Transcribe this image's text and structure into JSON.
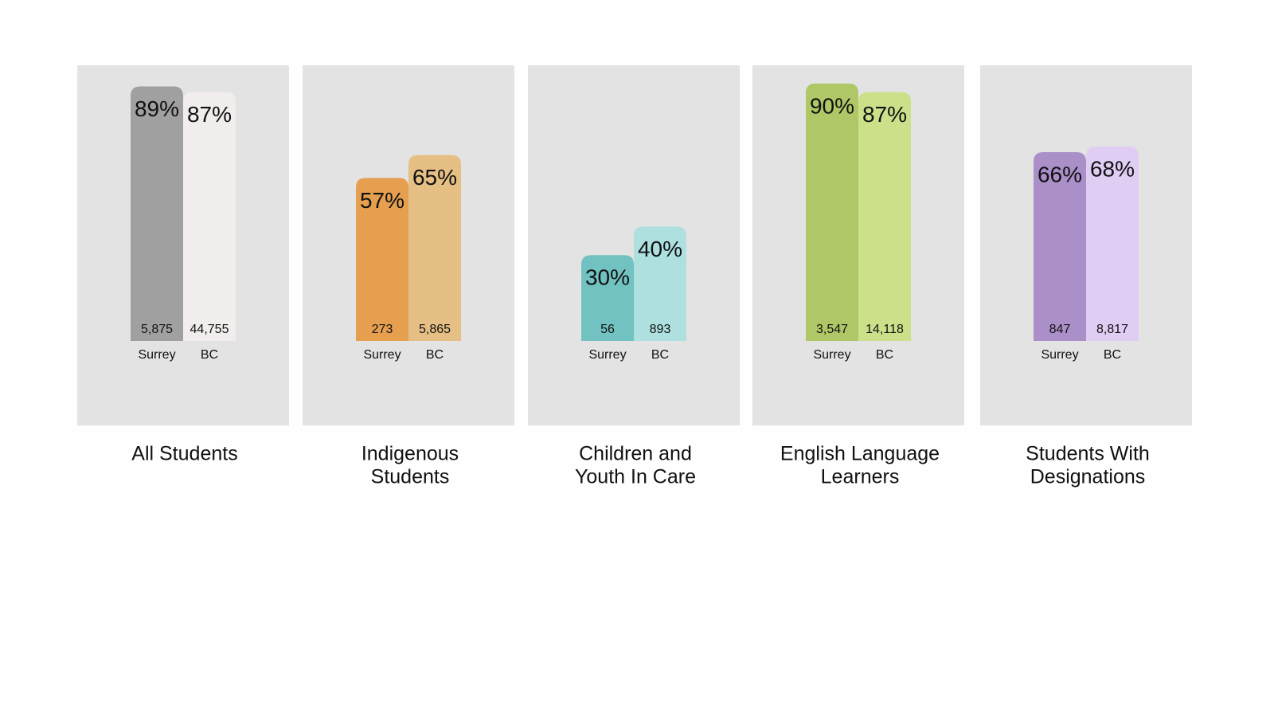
{
  "chart_data": [
    {
      "type": "bar",
      "title": [
        "All Students"
      ],
      "categories": [
        "Surrey",
        "BC"
      ],
      "values": [
        89,
        87
      ],
      "value_labels": [
        "89%",
        "87%"
      ],
      "counts": [
        "5,875",
        "44,755"
      ],
      "colors": [
        "#a0a0a0",
        "#f2eded"
      ]
    },
    {
      "type": "bar",
      "title": [
        "Indigenous",
        "Students"
      ],
      "categories": [
        "Surrey",
        "BC"
      ],
      "values": [
        57,
        65
      ],
      "value_labels": [
        "57%",
        "65%"
      ],
      "counts": [
        "273",
        "5,865"
      ],
      "colors": [
        "#e59f4f",
        "#e5bf84"
      ]
    },
    {
      "type": "bar",
      "title": [
        "Children and",
        "Youth In Care"
      ],
      "categories": [
        "Surrey",
        "BC"
      ],
      "values": [
        30,
        40
      ],
      "value_labels": [
        "30%",
        "40%"
      ],
      "counts": [
        "56",
        "893"
      ],
      "colors": [
        "#72c2c2",
        "#ade0de"
      ]
    },
    {
      "type": "bar",
      "title": [
        "English Language",
        "Learners"
      ],
      "categories": [
        "Surrey",
        "BC"
      ],
      "values": [
        90,
        87
      ],
      "value_labels": [
        "90%",
        "87%"
      ],
      "counts": [
        "3,547",
        "14,118"
      ],
      "colors": [
        "#b0c767",
        "#cce08a"
      ]
    },
    {
      "type": "bar",
      "title": [
        "Students With",
        "Designations"
      ],
      "categories": [
        "Surrey",
        "BC"
      ],
      "values": [
        66,
        68
      ],
      "value_labels": [
        "66%",
        "68%"
      ],
      "counts": [
        "847",
        "8,817"
      ],
      "colors": [
        "#ab8fc8",
        "#dfcdf3"
      ]
    }
  ]
}
